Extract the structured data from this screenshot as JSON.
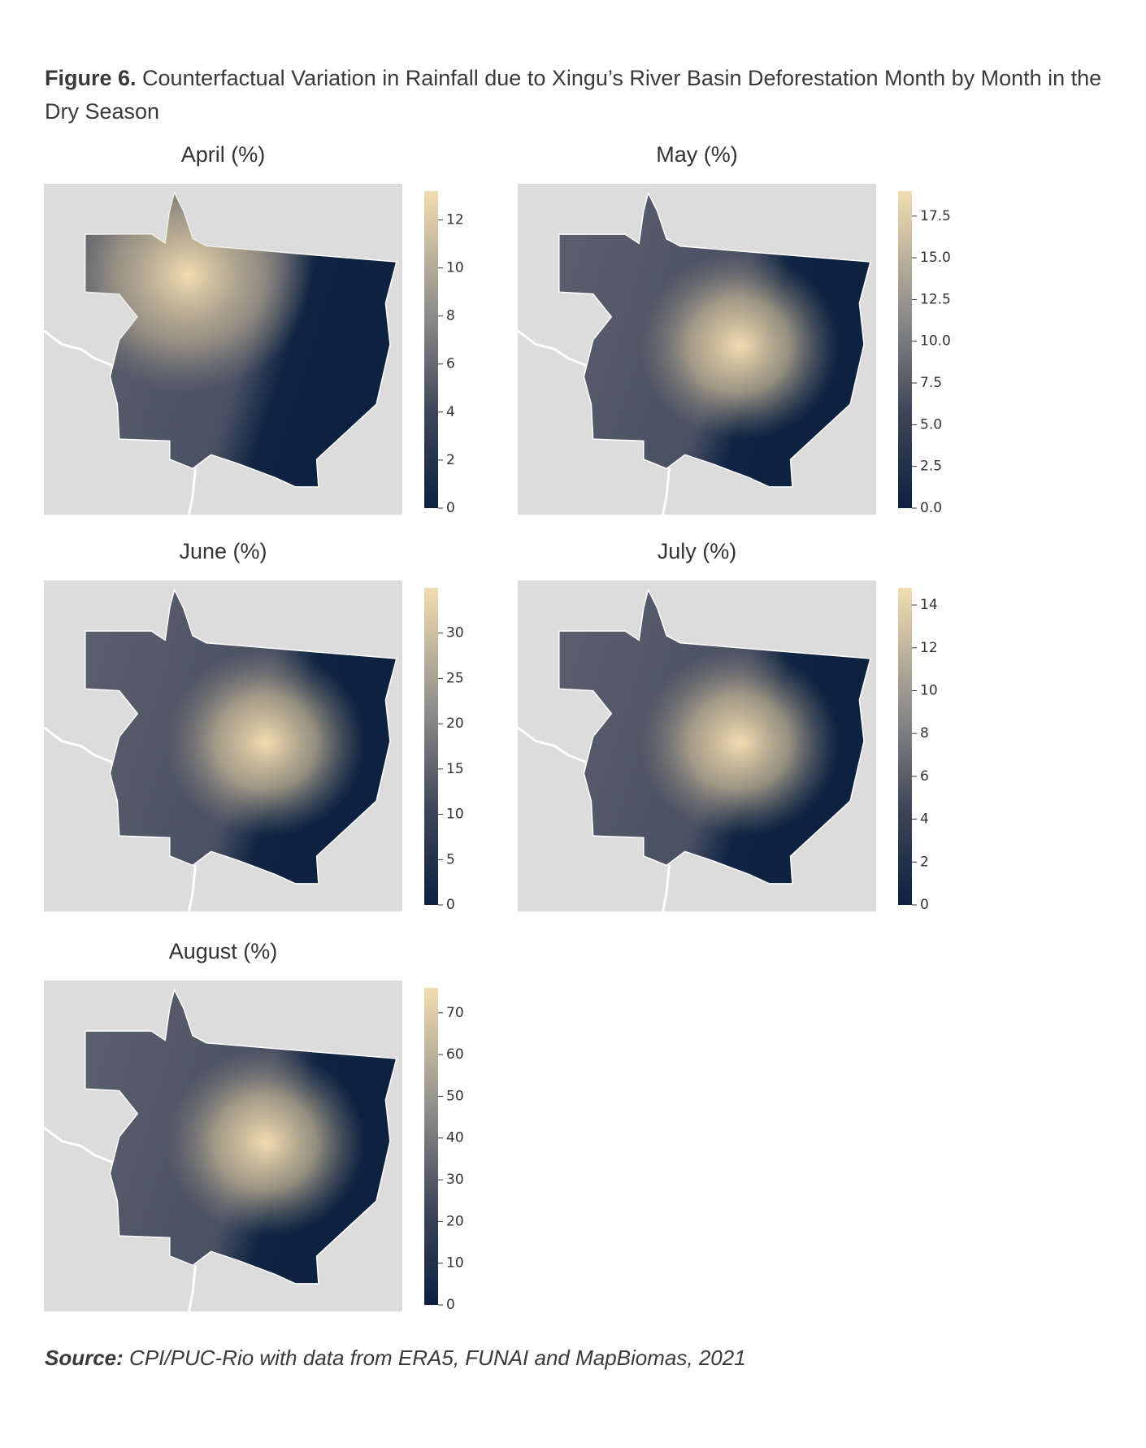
{
  "figure": {
    "label": "Figure 6.",
    "caption": "Counterfactual Variation in Rainfall due to Xingu’s River Basin Deforestation Month by Month in the Dry Season"
  },
  "panels": [
    {
      "title": "April (%)",
      "lim": [
        0,
        13.2
      ],
      "ticks": [
        0,
        2,
        4,
        6,
        8,
        10,
        12
      ]
    },
    {
      "title": "May (%)",
      "lim": [
        0,
        19
      ],
      "ticks": [
        {
          "value": 0,
          "label": "0.0"
        },
        2.5,
        {
          "value": 5,
          "label": "5.0"
        },
        7.5,
        {
          "value": 10,
          "label": "10.0"
        },
        12.5,
        {
          "value": 15,
          "label": "15.0"
        },
        17.5
      ]
    },
    {
      "title": "June (%)",
      "lim": [
        0,
        35
      ],
      "ticks": [
        0,
        5,
        10,
        15,
        20,
        25,
        30
      ]
    },
    {
      "title": "July (%)",
      "lim": [
        0,
        14.8
      ],
      "ticks": [
        0,
        2,
        4,
        6,
        8,
        10,
        12,
        14
      ]
    },
    {
      "title": "August (%)",
      "lim": [
        0,
        76
      ],
      "ticks": [
        0,
        10,
        20,
        30,
        40,
        50,
        60,
        70
      ]
    }
  ],
  "source": {
    "label": "Source:",
    "text": "CPI/PUC-Rio with data from ERA5, FUNAI and MapBiomas, 2021"
  }
}
